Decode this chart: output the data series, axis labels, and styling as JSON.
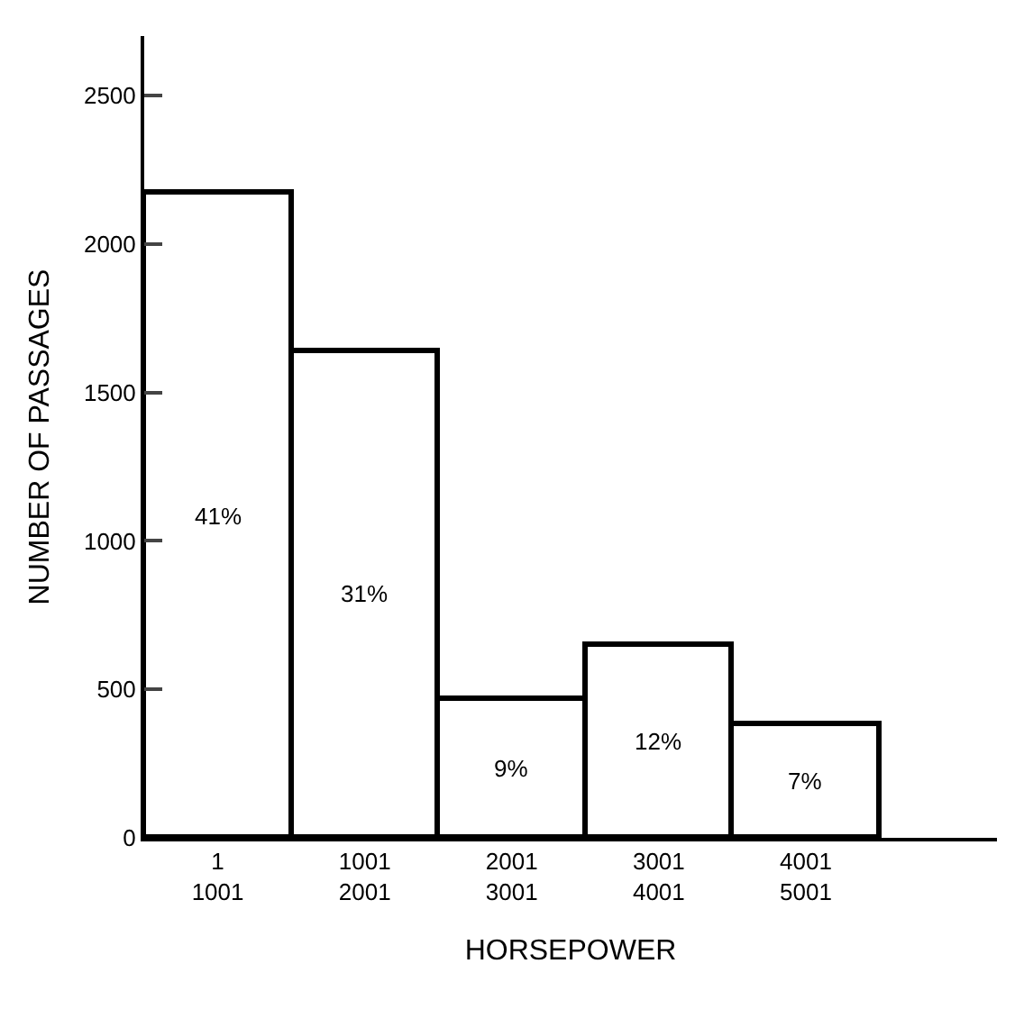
{
  "chart_data": {
    "type": "bar",
    "xlabel": "HORSEPOWER",
    "ylabel": "NUMBER OF PASSAGES",
    "categories": [
      "1\n1001",
      "1001\n2001",
      "2001\n3001",
      "3001\n4001",
      "4001\n5001"
    ],
    "values": [
      2170,
      1640,
      470,
      650,
      380
    ],
    "annotations": [
      "41%",
      "31%",
      "9%",
      "12%",
      "7%"
    ],
    "color": "#ffffff",
    "ylim": [
      0,
      2700
    ],
    "yticks": [
      0,
      500,
      1000,
      1500,
      2000,
      2500
    ]
  }
}
